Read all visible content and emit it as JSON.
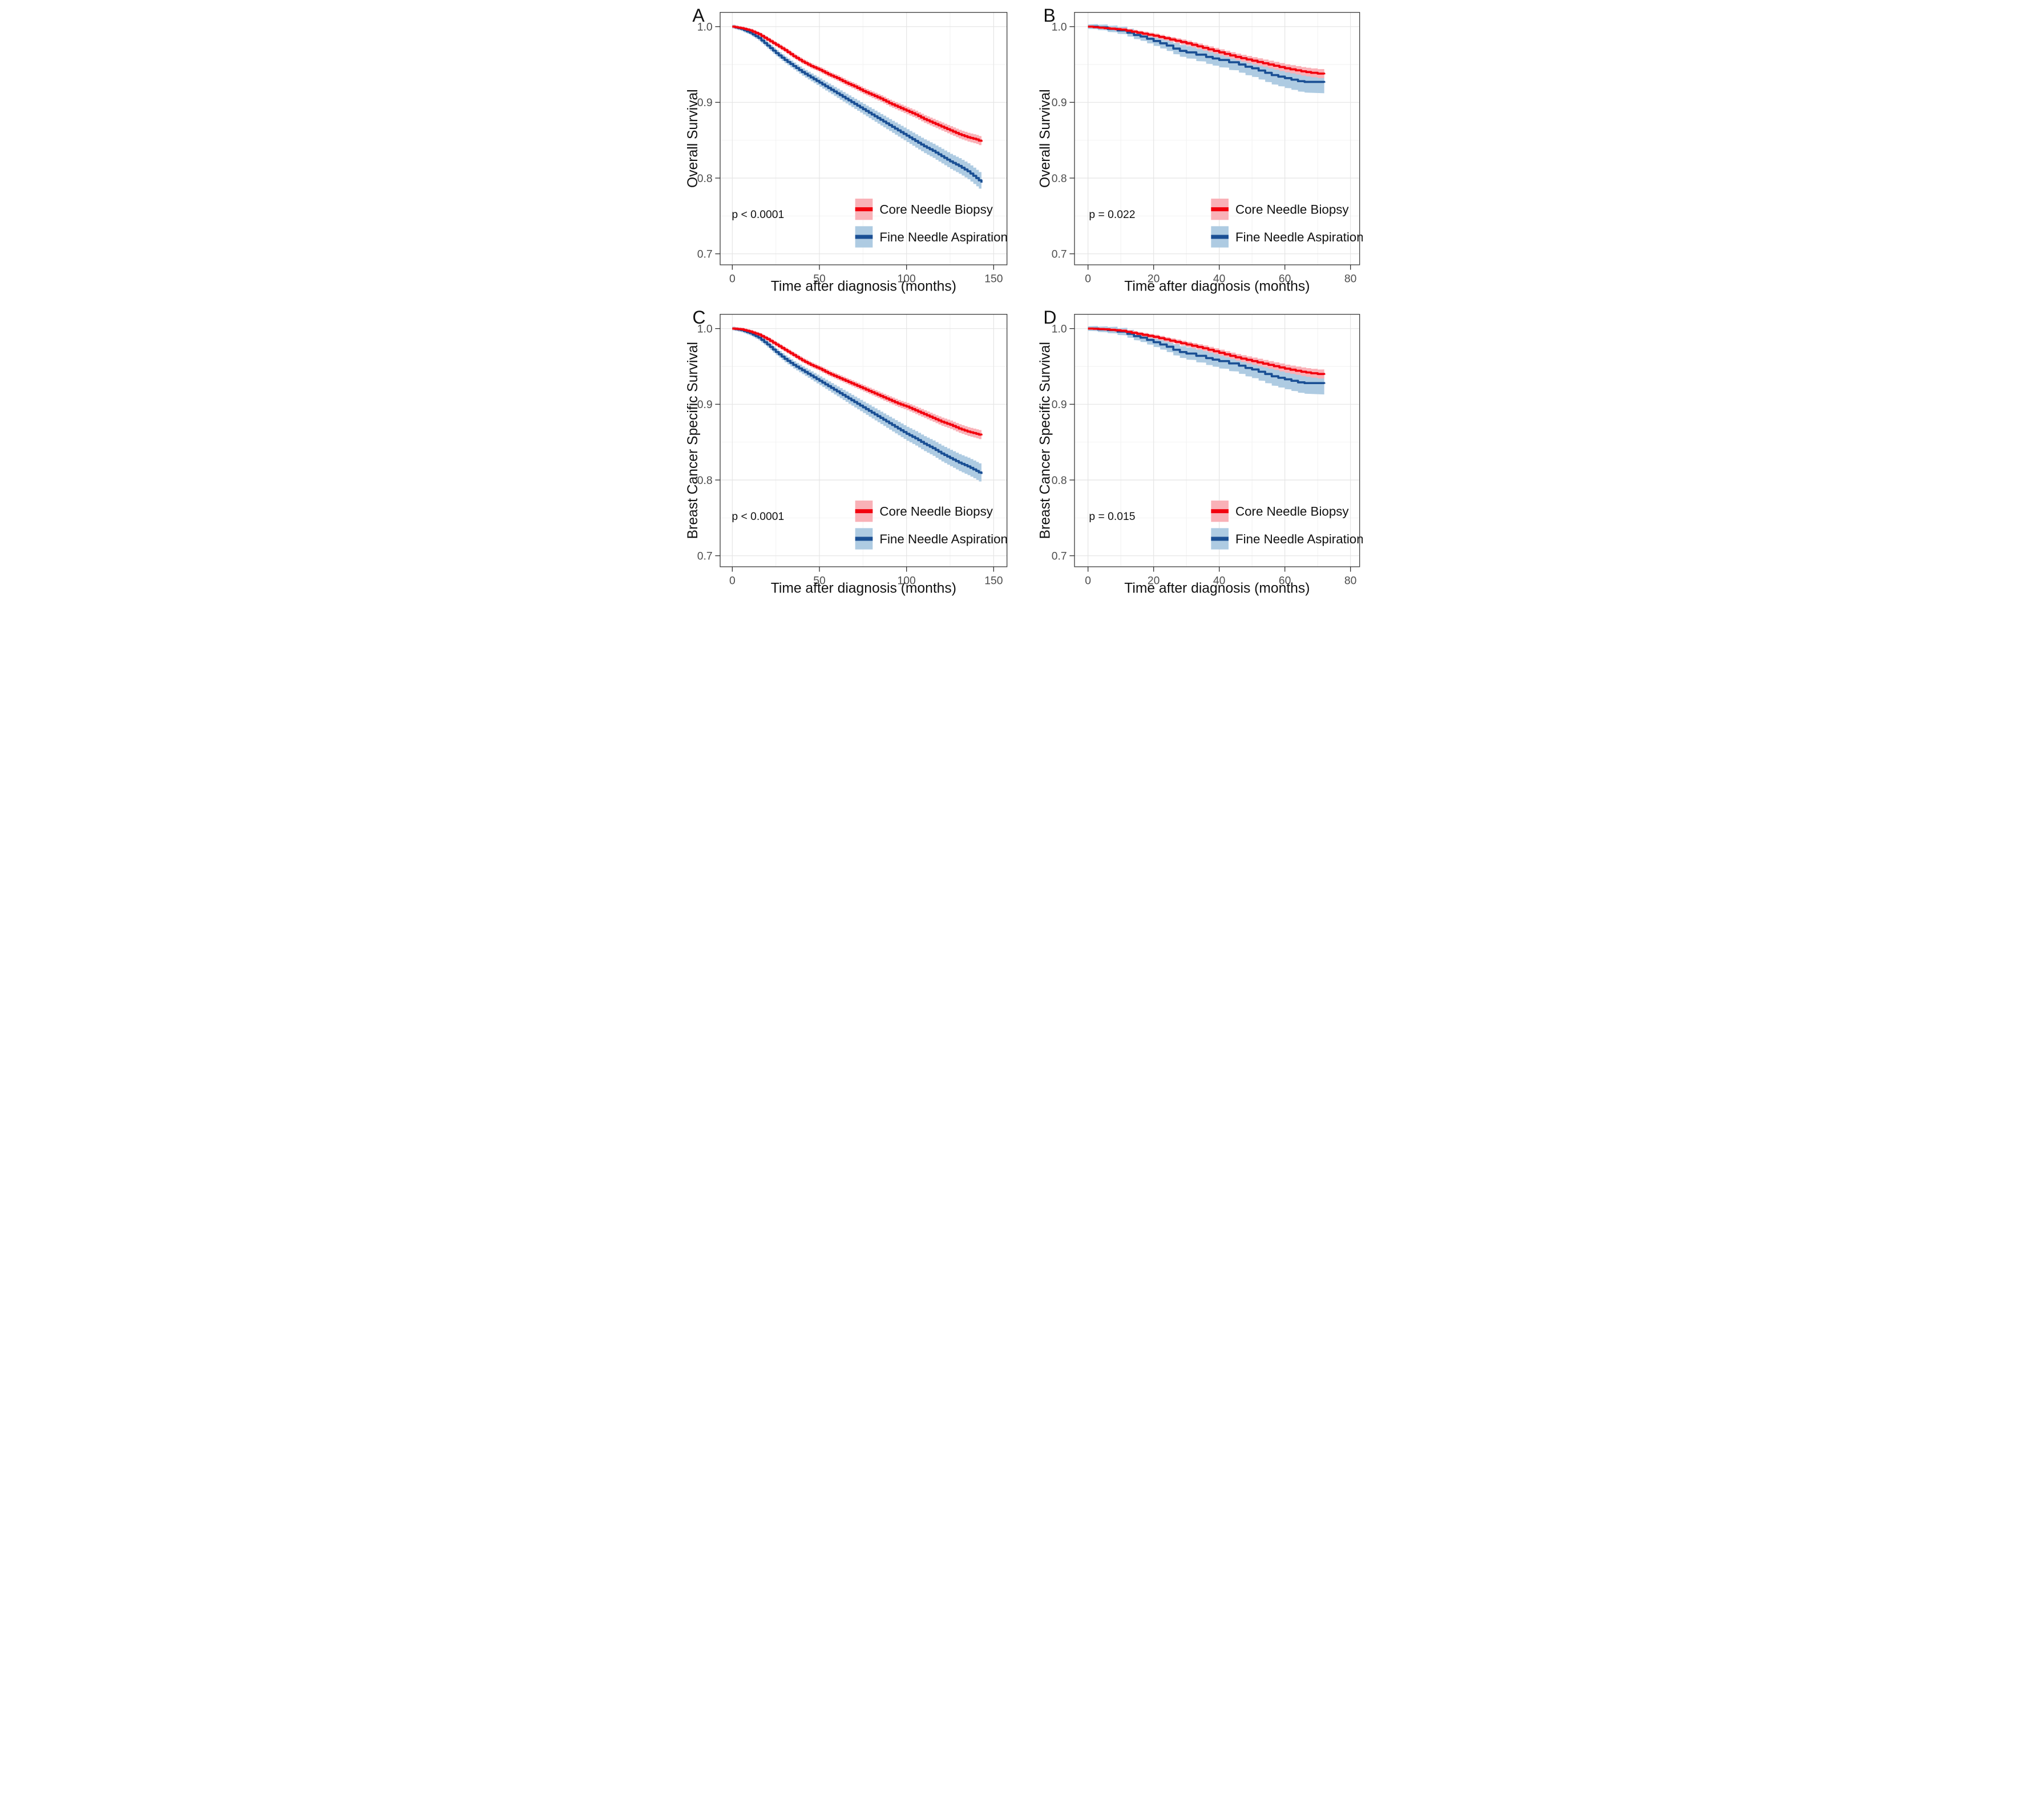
{
  "figure": {
    "colors": {
      "red_line": "#F2000D",
      "red_band": "#F9B1B7",
      "blue_line": "#1A4F94",
      "blue_band": "#AECBE2",
      "grid_major": "#E4E4E4",
      "grid_minor": "#F2F2F2",
      "border": "#3F3F3F",
      "tick": "#333333",
      "tick_label": "#4D4D4D",
      "text": "#111111",
      "background": "#FFFFFF"
    },
    "legend": {
      "entries": [
        {
          "label": "Core Needle Biopsy",
          "color_key": "red"
        },
        {
          "label": "Fine Needle Aspiration",
          "color_key": "blue"
        }
      ]
    },
    "panels": [
      {
        "label": "A",
        "y_title": "Overall Survival",
        "x_title": "Time after diagnosis (months)",
        "p_value": "p < 0.0001",
        "x_tick_labels": [
          "0",
          "50",
          "100",
          "150"
        ],
        "y_tick_labels": [
          "1.0",
          "0.9",
          "0.8",
          "0.7"
        ]
      },
      {
        "label": "B",
        "y_title": "Overall Survival",
        "x_title": "Time after diagnosis (months)",
        "p_value": "p = 0.022",
        "x_tick_labels": [
          "0",
          "20",
          "40",
          "60",
          "80"
        ],
        "y_tick_labels": [
          "1.0",
          "0.9",
          "0.8",
          "0.7"
        ]
      },
      {
        "label": "C",
        "y_title": "Breast Cancer Specific Survival",
        "x_title": "Time after diagnosis (months)",
        "p_value": "p < 0.0001",
        "x_tick_labels": [
          "0",
          "50",
          "100",
          "150"
        ],
        "y_tick_labels": [
          "1.0",
          "0.9",
          "0.8",
          "0.7"
        ]
      },
      {
        "label": "D",
        "y_title": "Breast Cancer Specific Survival",
        "x_title": "Time after diagnosis (months)",
        "p_value": "p = 0.015",
        "x_tick_labels": [
          "0",
          "20",
          "40",
          "60",
          "80"
        ],
        "y_tick_labels": [
          "1.0",
          "0.9",
          "0.8",
          "0.7"
        ]
      }
    ]
  },
  "chart_data": [
    {
      "panel": "A",
      "type": "line",
      "subtype": "kaplan-meier-step",
      "xlabel": "Time after diagnosis (months)",
      "ylabel": "Overall Survival",
      "xlim": [
        0,
        150
      ],
      "ylim": [
        0.7,
        1.0
      ],
      "x_ticks": [
        0,
        50,
        100,
        150
      ],
      "x_minor": [
        25,
        75,
        125
      ],
      "y_ticks": [
        1,
        0.9,
        0.8,
        0.7
      ],
      "y_minor": [
        0.95,
        0.85,
        0.75
      ],
      "p_text": "p < 0.0001",
      "series": [
        {
          "name": "Core Needle Biopsy",
          "color_key": "red",
          "step_months": 2,
          "ci_start": 0.002,
          "ci_end": 0.006,
          "x": [
            0,
            5,
            10,
            15,
            20,
            25,
            30,
            35,
            40,
            45,
            50,
            55,
            60,
            65,
            70,
            75,
            80,
            85,
            90,
            95,
            100,
            105,
            110,
            115,
            120,
            125,
            130,
            135,
            140,
            143
          ],
          "y": [
            1,
            0.998,
            0.995,
            0.99,
            0.983,
            0.976,
            0.969,
            0.961,
            0.954,
            0.948,
            0.943,
            0.937,
            0.932,
            0.926,
            0.921,
            0.915,
            0.91,
            0.905,
            0.899,
            0.894,
            0.889,
            0.884,
            0.878,
            0.873,
            0.868,
            0.863,
            0.858,
            0.854,
            0.851,
            0.848
          ]
        },
        {
          "name": "Fine Needle Aspiration",
          "color_key": "blue",
          "step_months": 2,
          "ci_start": 0.0025,
          "ci_end": 0.011,
          "x": [
            0,
            5,
            10,
            15,
            20,
            25,
            30,
            35,
            40,
            45,
            50,
            55,
            60,
            65,
            70,
            75,
            80,
            85,
            90,
            95,
            100,
            105,
            110,
            115,
            120,
            125,
            130,
            135,
            140,
            143
          ],
          "y": [
            1,
            0.997,
            0.992,
            0.985,
            0.975,
            0.965,
            0.956,
            0.948,
            0.94,
            0.933,
            0.926,
            0.919,
            0.912,
            0.905,
            0.898,
            0.891,
            0.884,
            0.877,
            0.87,
            0.863,
            0.856,
            0.849,
            0.842,
            0.836,
            0.829,
            0.822,
            0.816,
            0.809,
            0.8,
            0.794
          ]
        }
      ]
    },
    {
      "panel": "B",
      "type": "line",
      "subtype": "kaplan-meier-step",
      "xlabel": "Time after diagnosis (months)",
      "ylabel": "Overall Survival",
      "xlim": [
        0,
        80
      ],
      "ylim": [
        0.7,
        1.0
      ],
      "x_ticks": [
        0,
        20,
        40,
        60,
        80
      ],
      "x_minor": [
        10,
        30,
        50,
        70
      ],
      "y_ticks": [
        1,
        0.9,
        0.8,
        0.7
      ],
      "y_minor": [
        0.95,
        0.85,
        0.75
      ],
      "p_text": "p = 0.022",
      "series": [
        {
          "name": "Core Needle Biopsy",
          "color_key": "red",
          "step_months": 2,
          "ci_start": 0.0015,
          "ci_end": 0.006,
          "x": [
            0,
            5,
            10,
            15,
            20,
            25,
            30,
            35,
            40,
            45,
            50,
            55,
            60,
            65,
            68,
            72
          ],
          "y": [
            1,
            0.998,
            0.996,
            0.992,
            0.988,
            0.983,
            0.978,
            0.972,
            0.966,
            0.96,
            0.955,
            0.95,
            0.945,
            0.941,
            0.939,
            0.937
          ]
        },
        {
          "name": "Fine Needle Aspiration",
          "color_key": "blue",
          "step_months": 0,
          "ci_start": 0.003,
          "ci_end": 0.015,
          "x": [
            0,
            3,
            6,
            9,
            12,
            14,
            16,
            18,
            20,
            22,
            24,
            26,
            28,
            30,
            33,
            36,
            38,
            40,
            43,
            46,
            48,
            50,
            52,
            54,
            56,
            58,
            60,
            62,
            64,
            66,
            72
          ],
          "y": [
            1,
            0.999,
            0.997,
            0.995,
            0.992,
            0.989,
            0.987,
            0.984,
            0.981,
            0.978,
            0.975,
            0.971,
            0.968,
            0.966,
            0.963,
            0.96,
            0.958,
            0.956,
            0.953,
            0.95,
            0.947,
            0.945,
            0.942,
            0.939,
            0.936,
            0.934,
            0.932,
            0.93,
            0.928,
            0.927,
            0.926
          ]
        }
      ]
    },
    {
      "panel": "C",
      "type": "line",
      "subtype": "kaplan-meier-step",
      "xlabel": "Time after diagnosis (months)",
      "ylabel": "Breast Cancer Specific Survival",
      "xlim": [
        0,
        150
      ],
      "ylim": [
        0.7,
        1.0
      ],
      "x_ticks": [
        0,
        50,
        100,
        150
      ],
      "x_minor": [
        25,
        75,
        125
      ],
      "y_ticks": [
        1,
        0.9,
        0.8,
        0.7
      ],
      "y_minor": [
        0.95,
        0.85,
        0.75
      ],
      "p_text": "p < 0.0001",
      "series": [
        {
          "name": "Core Needle Biopsy",
          "color_key": "red",
          "step_months": 2,
          "ci_start": 0.002,
          "ci_end": 0.006,
          "x": [
            0,
            5,
            10,
            15,
            20,
            25,
            30,
            35,
            40,
            45,
            50,
            55,
            60,
            65,
            70,
            75,
            80,
            85,
            90,
            95,
            100,
            105,
            110,
            115,
            120,
            125,
            130,
            135,
            140,
            143
          ],
          "y": [
            1,
            0.999,
            0.996,
            0.992,
            0.986,
            0.979,
            0.972,
            0.965,
            0.958,
            0.952,
            0.947,
            0.941,
            0.936,
            0.931,
            0.926,
            0.921,
            0.916,
            0.911,
            0.906,
            0.901,
            0.897,
            0.892,
            0.887,
            0.882,
            0.877,
            0.873,
            0.868,
            0.864,
            0.861,
            0.859
          ]
        },
        {
          "name": "Fine Needle Aspiration",
          "color_key": "blue",
          "step_months": 2,
          "ci_start": 0.0025,
          "ci_end": 0.012,
          "x": [
            0,
            5,
            10,
            15,
            20,
            25,
            30,
            35,
            40,
            45,
            50,
            55,
            60,
            65,
            70,
            75,
            80,
            85,
            90,
            95,
            100,
            105,
            110,
            115,
            120,
            125,
            130,
            135,
            140,
            143
          ],
          "y": [
            1,
            0.998,
            0.994,
            0.988,
            0.979,
            0.969,
            0.96,
            0.952,
            0.945,
            0.938,
            0.931,
            0.924,
            0.917,
            0.91,
            0.903,
            0.896,
            0.889,
            0.882,
            0.875,
            0.868,
            0.861,
            0.855,
            0.848,
            0.842,
            0.835,
            0.829,
            0.823,
            0.818,
            0.812,
            0.808
          ]
        }
      ]
    },
    {
      "panel": "D",
      "type": "line",
      "subtype": "kaplan-meier-step",
      "xlabel": "Time after diagnosis (months)",
      "ylabel": "Breast Cancer Specific Survival",
      "xlim": [
        0,
        80
      ],
      "ylim": [
        0.7,
        1.0
      ],
      "x_ticks": [
        0,
        20,
        40,
        60,
        80
      ],
      "x_minor": [
        10,
        30,
        50,
        70
      ],
      "y_ticks": [
        1,
        0.9,
        0.8,
        0.7
      ],
      "y_minor": [
        0.95,
        0.85,
        0.75
      ],
      "p_text": "p = 0.015",
      "series": [
        {
          "name": "Core Needle Biopsy",
          "color_key": "red",
          "step_months": 2,
          "ci_start": 0.0015,
          "ci_end": 0.006,
          "x": [
            0,
            5,
            10,
            15,
            20,
            25,
            30,
            35,
            40,
            45,
            50,
            55,
            60,
            65,
            68,
            72
          ],
          "y": [
            1,
            0.999,
            0.997,
            0.993,
            0.989,
            0.984,
            0.979,
            0.974,
            0.968,
            0.962,
            0.957,
            0.952,
            0.947,
            0.943,
            0.941,
            0.939
          ]
        },
        {
          "name": "Fine Needle Aspiration",
          "color_key": "blue",
          "step_months": 0,
          "ci_start": 0.003,
          "ci_end": 0.015,
          "x": [
            0,
            3,
            6,
            9,
            12,
            14,
            16,
            18,
            20,
            22,
            24,
            26,
            28,
            30,
            33,
            36,
            38,
            40,
            43,
            46,
            48,
            50,
            52,
            54,
            56,
            58,
            60,
            62,
            64,
            66,
            72
          ],
          "y": [
            1,
            0.999,
            0.998,
            0.996,
            0.993,
            0.99,
            0.988,
            0.985,
            0.982,
            0.979,
            0.976,
            0.972,
            0.969,
            0.967,
            0.964,
            0.961,
            0.959,
            0.957,
            0.954,
            0.951,
            0.948,
            0.946,
            0.943,
            0.94,
            0.937,
            0.935,
            0.933,
            0.931,
            0.929,
            0.928,
            0.927
          ]
        }
      ]
    }
  ]
}
